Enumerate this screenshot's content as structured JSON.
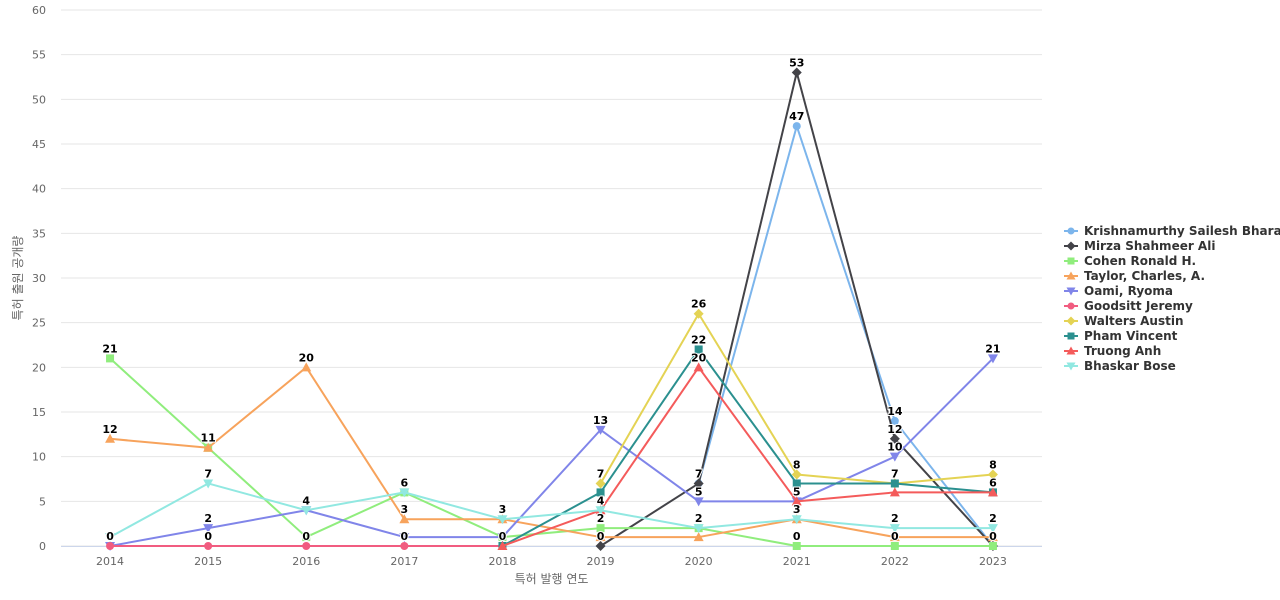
{
  "chart_data": {
    "type": "line",
    "xlabel": "특허 발행 연도",
    "ylabel": "특허 출원 공개량",
    "ylim": [
      0,
      60
    ],
    "yticks": [
      0,
      5,
      10,
      15,
      20,
      25,
      30,
      35,
      40,
      45,
      50,
      55,
      60
    ],
    "grid": true,
    "legend_position": "right",
    "categories": [
      "2014",
      "2015",
      "2016",
      "2017",
      "2018",
      "2019",
      "2020",
      "2021",
      "2022",
      "2023"
    ],
    "series": [
      {
        "name": "Krishnamurthy Sailesh Bhara...",
        "color": "#7cb5ec",
        "marker": "circle",
        "values": [
          null,
          null,
          null,
          null,
          null,
          null,
          7,
          47,
          14,
          0
        ]
      },
      {
        "name": "Mirza Shahmeer Ali",
        "color": "#434348",
        "marker": "diamond",
        "values": [
          null,
          null,
          null,
          null,
          null,
          0,
          7,
          53,
          12,
          0
        ]
      },
      {
        "name": "Cohen Ronald H.",
        "color": "#90ed7d",
        "marker": "square",
        "values": [
          21,
          11,
          1,
          6,
          1,
          2,
          2,
          0,
          0,
          0
        ]
      },
      {
        "name": "Taylor, Charles, A.",
        "color": "#f7a35c",
        "marker": "triangle",
        "values": [
          12,
          11,
          20,
          3,
          3,
          1,
          1,
          3,
          1,
          1
        ]
      },
      {
        "name": "Oami, Ryoma",
        "color": "#8085e9",
        "marker": "triangle-down",
        "values": [
          0,
          2,
          4,
          1,
          1,
          13,
          5,
          5,
          10,
          21
        ]
      },
      {
        "name": "Goodsitt Jeremy",
        "color": "#f15c80",
        "marker": "circle",
        "values": [
          0,
          0,
          0,
          0,
          0,
          null,
          null,
          null,
          null,
          null
        ]
      },
      {
        "name": "Walters Austin",
        "color": "#e4d354",
        "marker": "diamond",
        "values": [
          null,
          null,
          null,
          null,
          null,
          7,
          26,
          8,
          7,
          8
        ]
      },
      {
        "name": "Pham Vincent",
        "color": "#2b908f",
        "marker": "square",
        "values": [
          null,
          null,
          null,
          null,
          0,
          6,
          22,
          7,
          7,
          6
        ]
      },
      {
        "name": "Truong Anh",
        "color": "#f45b5b",
        "marker": "triangle",
        "values": [
          null,
          null,
          null,
          null,
          0,
          4,
          20,
          5,
          6,
          6
        ]
      },
      {
        "name": "Bhaskar Bose",
        "color": "#91e8e1",
        "marker": "triangle-down",
        "values": [
          1,
          7,
          4,
          6,
          3,
          4,
          2,
          3,
          2,
          2
        ]
      }
    ],
    "data_labels": [
      {
        "category": "2014",
        "text": "21",
        "series": "Cohen Ronald H."
      },
      {
        "category": "2014",
        "text": "12",
        "series": "Taylor, Charles, A."
      },
      {
        "category": "2014",
        "text": "0",
        "series": "Goodsitt Jeremy"
      },
      {
        "category": "2015",
        "text": "11",
        "series": "Taylor, Charles, A."
      },
      {
        "category": "2015",
        "text": "7",
        "series": "Bhaskar Bose"
      },
      {
        "category": "2015",
        "text": "2",
        "series": "Oami, Ryoma"
      },
      {
        "category": "2015",
        "text": "0",
        "series": "Goodsitt Jeremy"
      },
      {
        "category": "2016",
        "text": "20",
        "series": "Taylor, Charles, A."
      },
      {
        "category": "2016",
        "text": "4",
        "series": "Oami, Ryoma"
      },
      {
        "category": "2016",
        "text": "0",
        "series": "Goodsitt Jeremy"
      },
      {
        "category": "2017",
        "text": "6",
        "series": "Cohen Ronald H."
      },
      {
        "category": "2017",
        "text": "3",
        "series": "Taylor, Charles, A."
      },
      {
        "category": "2017",
        "text": "0",
        "series": "Goodsitt Jeremy"
      },
      {
        "category": "2018",
        "text": "3",
        "series": "Taylor, Charles, A."
      },
      {
        "category": "2018",
        "text": "0",
        "series": "Goodsitt Jeremy"
      },
      {
        "category": "2019",
        "text": "13",
        "series": "Oami, Ryoma"
      },
      {
        "category": "2019",
        "text": "7",
        "series": "Walters Austin"
      },
      {
        "category": "2019",
        "text": "4",
        "series": "Truong Anh"
      },
      {
        "category": "2019",
        "text": "2",
        "series": "Cohen Ronald H."
      },
      {
        "category": "2019",
        "text": "0",
        "series": "Mirza Shahmeer Ali"
      },
      {
        "category": "2020",
        "text": "26",
        "series": "Walters Austin"
      },
      {
        "category": "2020",
        "text": "22",
        "series": "Pham Vincent"
      },
      {
        "category": "2020",
        "text": "20",
        "series": "Truong Anh"
      },
      {
        "category": "2020",
        "text": "7",
        "series": "Mirza Shahmeer Ali"
      },
      {
        "category": "2020",
        "text": "5",
        "series": "Oami, Ryoma"
      },
      {
        "category": "2020",
        "text": "2",
        "series": "Cohen Ronald H."
      },
      {
        "category": "2021",
        "text": "53",
        "series": "Mirza Shahmeer Ali"
      },
      {
        "category": "2021",
        "text": "47",
        "series": "Krishnamurthy Sailesh Bhara..."
      },
      {
        "category": "2021",
        "text": "8",
        "series": "Walters Austin"
      },
      {
        "category": "2021",
        "text": "5",
        "series": "Truong Anh"
      },
      {
        "category": "2021",
        "text": "3",
        "series": "Taylor, Charles, A."
      },
      {
        "category": "2021",
        "text": "0",
        "series": "Cohen Ronald H."
      },
      {
        "category": "2022",
        "text": "14",
        "series": "Krishnamurthy Sailesh Bhara..."
      },
      {
        "category": "2022",
        "text": "12",
        "series": "Mirza Shahmeer Ali"
      },
      {
        "category": "2022",
        "text": "10",
        "series": "Oami, Ryoma"
      },
      {
        "category": "2022",
        "text": "7",
        "series": "Pham Vincent"
      },
      {
        "category": "2022",
        "text": "2",
        "series": "Bhaskar Bose"
      },
      {
        "category": "2022",
        "text": "0",
        "series": "Cohen Ronald H."
      },
      {
        "category": "2023",
        "text": "21",
        "series": "Oami, Ryoma"
      },
      {
        "category": "2023",
        "text": "8",
        "series": "Walters Austin"
      },
      {
        "category": "2023",
        "text": "6",
        "series": "Pham Vincent"
      },
      {
        "category": "2023",
        "text": "2",
        "series": "Bhaskar Bose"
      },
      {
        "category": "2023",
        "text": "0",
        "series": "Cohen Ronald H."
      }
    ]
  }
}
